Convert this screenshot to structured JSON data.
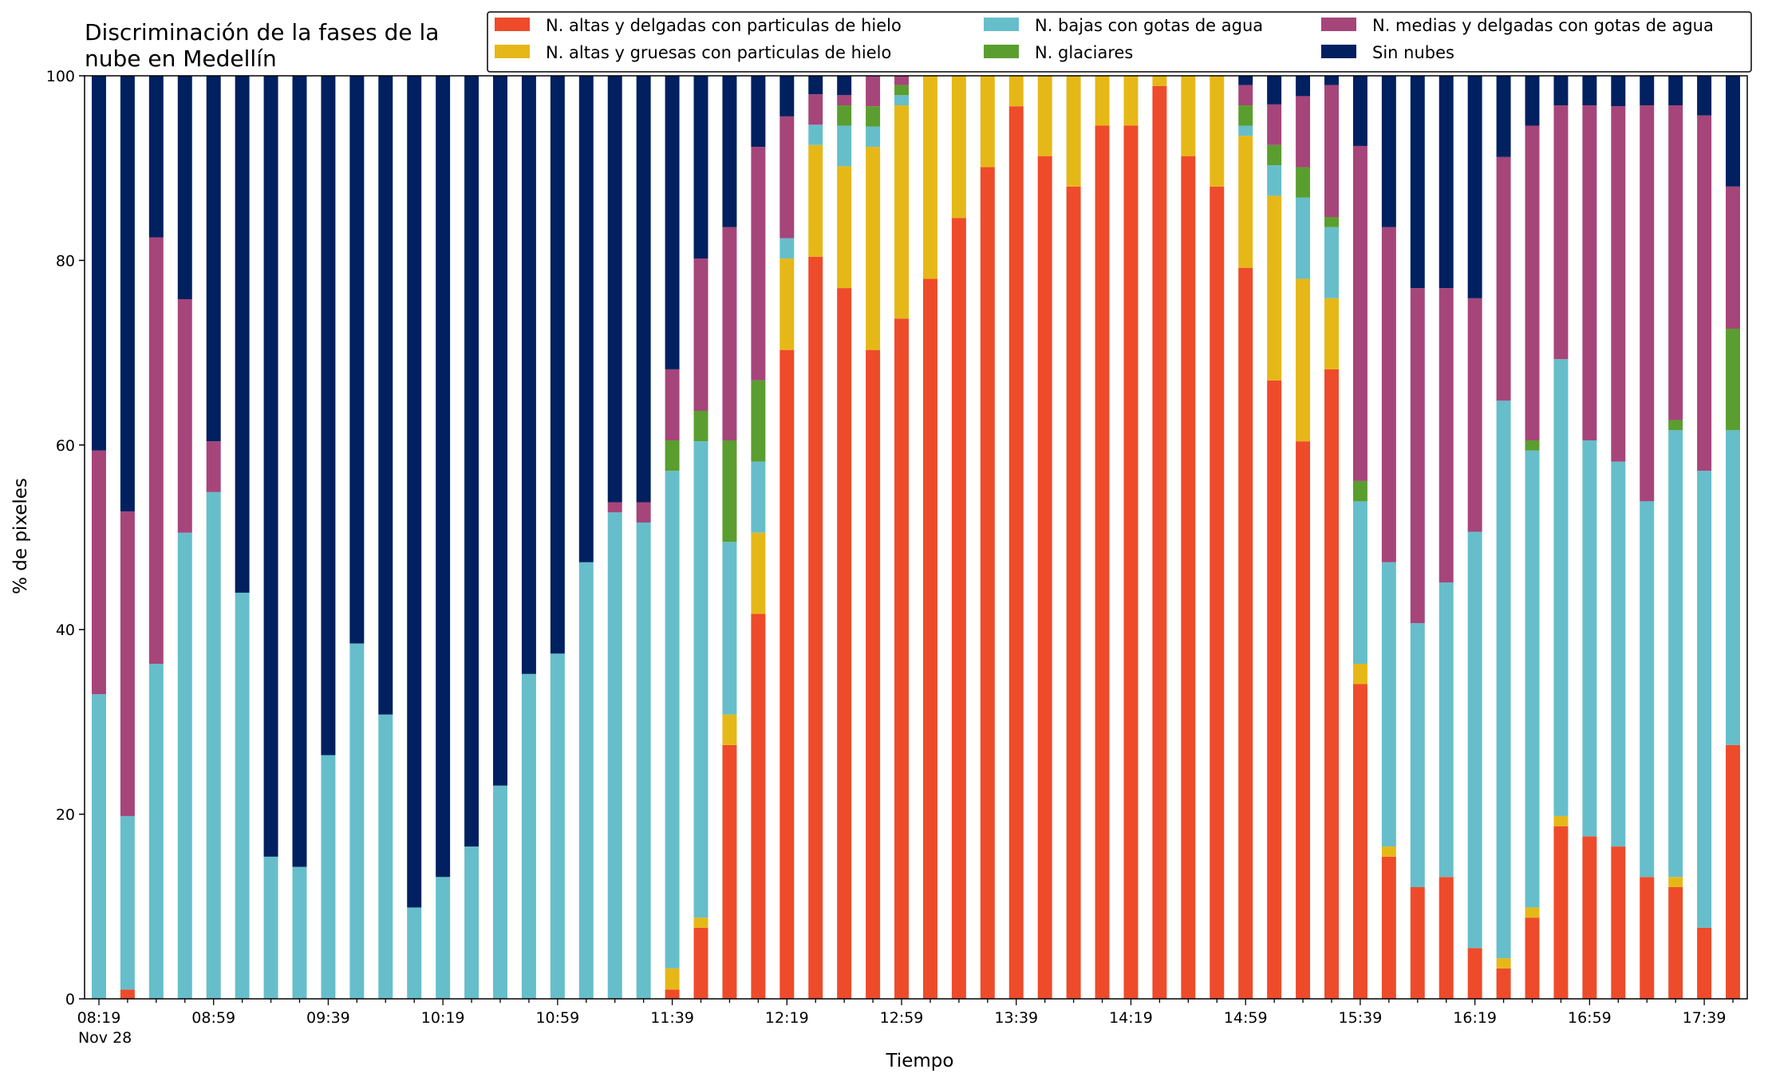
{
  "chart_data": {
    "type": "bar",
    "stacked": true,
    "title_lines": [
      "Discriminación de la fases de la",
      "nube en Medellín"
    ],
    "xlabel": "Tiempo",
    "ylabel": "% de pixeles",
    "ylim": [
      0,
      100
    ],
    "yticks": [
      "0",
      "20",
      "40",
      "60",
      "80",
      "100"
    ],
    "grid": false,
    "legend_position": "top-right",
    "xtick_labels": [
      "08:19",
      "08:59",
      "09:39",
      "10:19",
      "10:59",
      "11:39",
      "12:19",
      "12:59",
      "13:39",
      "14:19",
      "14:59",
      "15:39",
      "16:19",
      "16:59",
      "17:39"
    ],
    "xtick_sublabel": "Nov 28",
    "x": [
      "08:19",
      "08:29",
      "08:39",
      "08:49",
      "08:59",
      "09:09",
      "09:19",
      "09:29",
      "09:39",
      "09:49",
      "09:59",
      "10:09",
      "10:19",
      "10:29",
      "10:39",
      "10:49",
      "10:59",
      "11:09",
      "11:19",
      "11:29",
      "11:39",
      "11:49",
      "11:59",
      "12:09",
      "12:19",
      "12:29",
      "12:39",
      "12:49",
      "12:59",
      "13:09",
      "13:19",
      "13:29",
      "13:39",
      "13:49",
      "13:59",
      "14:09",
      "14:19",
      "14:29",
      "14:39",
      "14:49",
      "14:59",
      "15:09",
      "15:19",
      "15:29",
      "15:39",
      "15:49",
      "15:59",
      "16:09",
      "16:19",
      "16:29",
      "16:39",
      "16:49",
      "16:59",
      "17:09",
      "17:19",
      "17:29",
      "17:39",
      "17:49"
    ],
    "series": [
      {
        "name": "N. altas y delgadas con particulas de hielo",
        "color": "#EE4B2B",
        "values": [
          0,
          1,
          0,
          0,
          0,
          0,
          0,
          0,
          0,
          0,
          0,
          0,
          0,
          0,
          0,
          0,
          0,
          0,
          0,
          0,
          1,
          7.7,
          27.5,
          41.7,
          70.3,
          80.4,
          77,
          70.3,
          73.7,
          78,
          84.6,
          90.1,
          96.7,
          91.3,
          88,
          94.6,
          94.6,
          98.9,
          91.3,
          88,
          79.2,
          67,
          60.4,
          68.2,
          34.1,
          15.4,
          12.1,
          13.2,
          5.5,
          3.3,
          8.8,
          18.7,
          17.6,
          16.5,
          13.2,
          12.1,
          7.7,
          27.5
        ]
      },
      {
        "name": "N. altas y gruesas con particulas de hielo",
        "color": "#E6B817",
        "values": [
          0,
          0,
          0,
          0,
          0,
          0,
          0,
          0,
          0,
          0,
          0,
          0,
          0,
          0,
          0,
          0,
          0,
          0,
          0,
          0,
          2.3,
          1.1,
          3.3,
          8.8,
          9.9,
          12.1,
          13.2,
          22,
          23.1,
          22,
          15.4,
          9.9,
          3.3,
          8.7,
          12,
          5.4,
          5.4,
          1.1,
          8.7,
          12,
          14.3,
          20,
          17.6,
          7.7,
          2.2,
          1.1,
          0,
          0,
          0,
          1.1,
          1.1,
          1.1,
          0,
          0,
          0,
          1.1,
          0,
          0
        ]
      },
      {
        "name": "N. bajas con gotas de agua",
        "color": "#66BECB",
        "values": [
          33,
          18.8,
          36.3,
          50.5,
          54.9,
          44,
          15.4,
          14.3,
          26.4,
          38.5,
          30.8,
          9.9,
          13.2,
          16.5,
          23.1,
          35.2,
          37.4,
          47.3,
          52.7,
          51.6,
          53.9,
          51.6,
          18.7,
          7.7,
          2.2,
          2.2,
          4.4,
          2.2,
          1.1,
          0,
          0,
          0,
          0,
          0,
          0,
          0,
          0,
          0,
          0,
          0,
          1.1,
          3.3,
          8.8,
          7.7,
          17.6,
          30.8,
          28.6,
          31.9,
          45.1,
          60.4,
          49.5,
          49.5,
          42.9,
          41.7,
          40.7,
          48.4,
          49.5,
          34.1
        ]
      },
      {
        "name": "N. glaciares",
        "color": "#5A9E2F",
        "values": [
          0,
          0,
          0,
          0,
          0,
          0,
          0,
          0,
          0,
          0,
          0,
          0,
          0,
          0,
          0,
          0,
          0,
          0,
          0,
          0,
          3.3,
          3.3,
          11,
          8.8,
          0,
          0,
          2.2,
          2.2,
          1.1,
          0,
          0,
          0,
          0,
          0,
          0,
          0,
          0,
          0,
          0,
          0,
          2.2,
          2.2,
          3.3,
          1.1,
          2.2,
          0,
          0,
          0,
          0,
          0,
          1.1,
          0,
          0,
          0,
          0,
          1.1,
          0,
          11
        ]
      },
      {
        "name": "N. medias y delgadas con gotas de agua",
        "color": "#A6457A",
        "values": [
          26.4,
          33,
          46.2,
          25.3,
          5.5,
          0,
          0,
          0,
          0,
          0,
          0,
          0,
          0,
          0,
          0,
          0,
          0,
          0,
          1.1,
          2.2,
          7.7,
          16.5,
          23.1,
          25.3,
          13.2,
          3.3,
          1.1,
          3.3,
          1,
          0,
          0,
          0,
          0,
          0,
          0,
          0,
          0,
          0,
          0,
          0,
          2.2,
          4.4,
          7.7,
          14.3,
          36.3,
          36.3,
          36.3,
          31.9,
          25.3,
          26.4,
          34.1,
          27.5,
          36.3,
          38.5,
          42.9,
          34.1,
          38.5,
          15.4
        ]
      },
      {
        "name": "Sin nubes",
        "color": "#002060",
        "values": [
          40.6,
          47.2,
          17.5,
          24.2,
          39.6,
          56,
          84.6,
          85.7,
          73.6,
          61.5,
          69.2,
          90.1,
          86.8,
          83.5,
          76.9,
          64.8,
          62.6,
          52.7,
          46.2,
          46.2,
          31.8,
          19.8,
          16.4,
          7.7,
          4.4,
          2,
          2.1,
          0,
          0,
          0,
          0,
          0,
          0,
          0,
          0,
          0,
          0,
          0,
          0,
          0,
          1.1,
          3.1,
          2.2,
          1,
          7.6,
          16.4,
          23,
          23,
          24.1,
          8.8,
          5.4,
          3.2,
          3.2,
          3.3,
          3.2,
          3.2,
          4.3,
          12
        ]
      }
    ]
  }
}
